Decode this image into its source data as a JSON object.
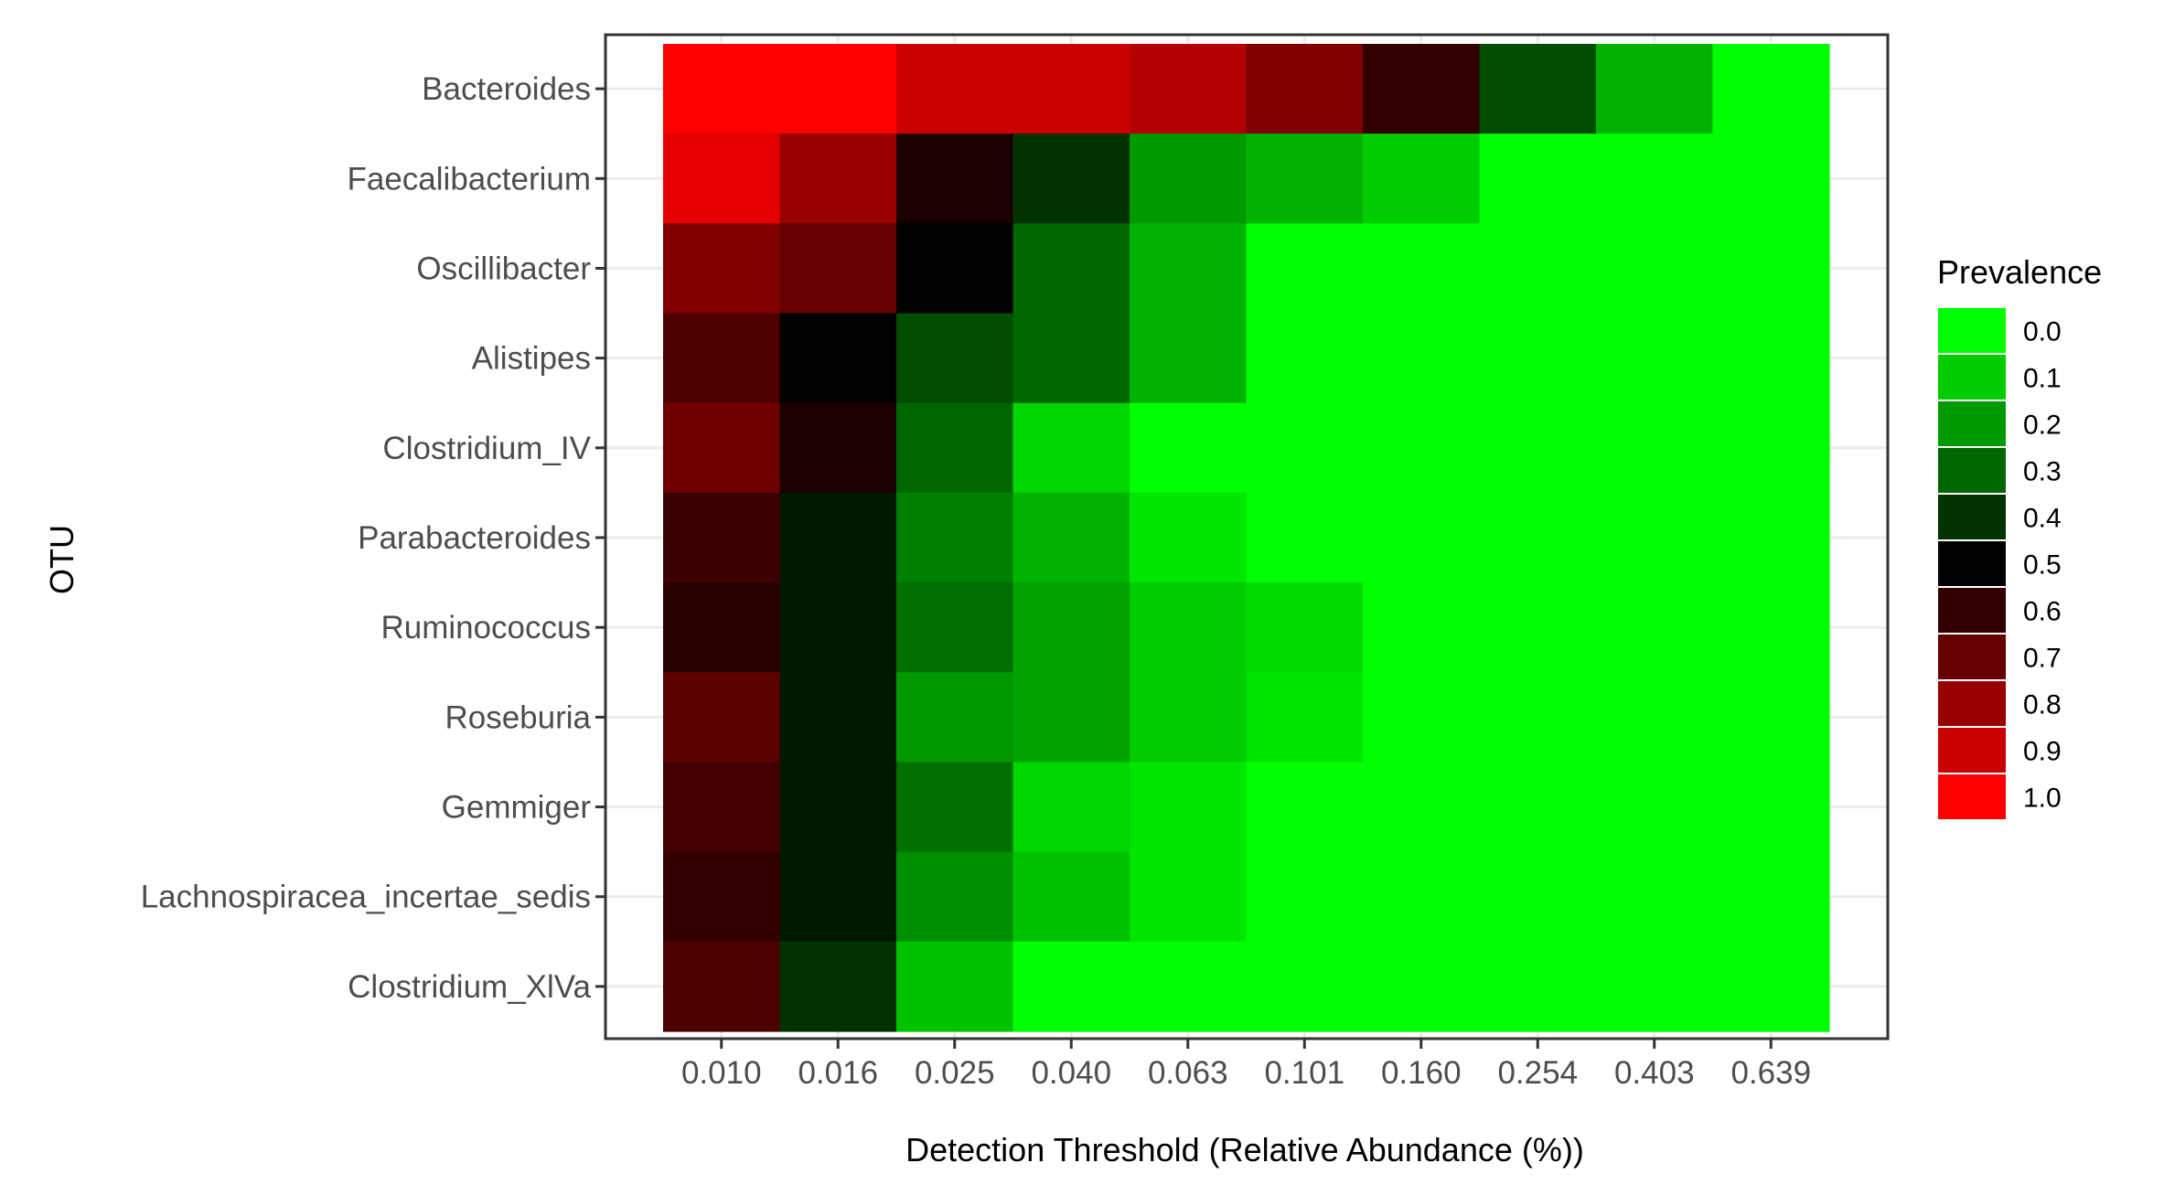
{
  "chart_data": {
    "type": "heatmap",
    "xlabel": "Detection Threshold (Relative Abundance (%))",
    "ylabel": "OTU",
    "x_categories": [
      "0.010",
      "0.016",
      "0.025",
      "0.040",
      "0.063",
      "0.101",
      "0.160",
      "0.254",
      "0.403",
      "0.639"
    ],
    "y_categories": [
      "Bacteroides",
      "Faecalibacterium",
      "Oscillibacter",
      "Alistipes",
      "Clostridium_IV",
      "Parabacteroides",
      "Ruminococcus",
      "Roseburia",
      "Gemmiger",
      "Lachnospiracea_incertae_sedis",
      "Clostridium_XlVa"
    ],
    "values": [
      [
        1.0,
        1.0,
        0.9,
        0.9,
        0.85,
        0.75,
        0.6,
        0.35,
        0.15,
        0.0
      ],
      [
        0.95,
        0.8,
        0.55,
        0.4,
        0.2,
        0.15,
        0.1,
        0.0,
        0.0,
        0.0
      ],
      [
        0.75,
        0.7,
        0.5,
        0.3,
        0.15,
        0.0,
        0.0,
        0.0,
        0.0,
        0.0
      ],
      [
        0.65,
        0.5,
        0.35,
        0.3,
        0.15,
        0.0,
        0.0,
        0.0,
        0.0,
        0.0
      ],
      [
        0.72,
        0.55,
        0.3,
        0.08,
        0.0,
        0.0,
        0.0,
        0.0,
        0.0,
        0.0
      ],
      [
        0.62,
        0.45,
        0.25,
        0.15,
        0.05,
        0.0,
        0.0,
        0.0,
        0.0,
        0.0
      ],
      [
        0.58,
        0.45,
        0.28,
        0.18,
        0.1,
        0.07,
        0.0,
        0.0,
        0.0,
        0.0
      ],
      [
        0.68,
        0.45,
        0.2,
        0.18,
        0.1,
        0.05,
        0.0,
        0.0,
        0.0,
        0.0
      ],
      [
        0.63,
        0.45,
        0.28,
        0.08,
        0.05,
        0.0,
        0.0,
        0.0,
        0.0,
        0.0
      ],
      [
        0.6,
        0.45,
        0.22,
        0.12,
        0.05,
        0.0,
        0.0,
        0.0,
        0.0,
        0.0
      ],
      [
        0.65,
        0.4,
        0.12,
        0.0,
        0.0,
        0.0,
        0.0,
        0.0,
        0.0,
        0.0
      ]
    ],
    "legend": {
      "title": "Prevalence",
      "position": "right",
      "levels": [
        "0.0",
        "0.1",
        "0.2",
        "0.3",
        "0.4",
        "0.5",
        "0.6",
        "0.7",
        "0.8",
        "0.9",
        "1.0"
      ]
    },
    "colors": {
      "low": "#00ff00",
      "mid": "#000000",
      "high": "#ff0000",
      "panel_background": "#ffffff",
      "grid": "#ebebeb",
      "panel_border": "#333333",
      "tick_text": "#4d4d4d"
    },
    "grid": true
  }
}
